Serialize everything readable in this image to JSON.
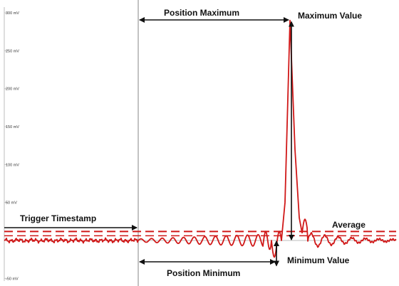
{
  "chart_data": {
    "type": "line",
    "title": "",
    "xlabel": "",
    "ylabel": "",
    "ylim": [
      -50,
      310
    ],
    "y_ticks": [
      {
        "value": 300,
        "label": "300 mV"
      },
      {
        "value": 250,
        "label": "250 mV"
      },
      {
        "value": 200,
        "label": "200 mV"
      },
      {
        "value": 150,
        "label": "150 mV"
      },
      {
        "value": 100,
        "label": "100 mV"
      },
      {
        "value": 50,
        "label": "50 mV"
      },
      {
        "value": -50,
        "label": "-50 mV"
      }
    ],
    "grid": false,
    "series_color": "#d01818",
    "average_line": {
      "value": 10,
      "color": "#d01818",
      "style": "dashed"
    },
    "baseline_value": 0,
    "maximum_value": 290,
    "minimum_value": -22,
    "annotations": {
      "trigger_timestamp": "Trigger Timestamp",
      "position_maximum": "Position Maximum",
      "maximum_value": "Maximum Value",
      "average": "Average",
      "minimum_value": "Minimum Value",
      "position_minimum": "Position Minimum"
    }
  }
}
